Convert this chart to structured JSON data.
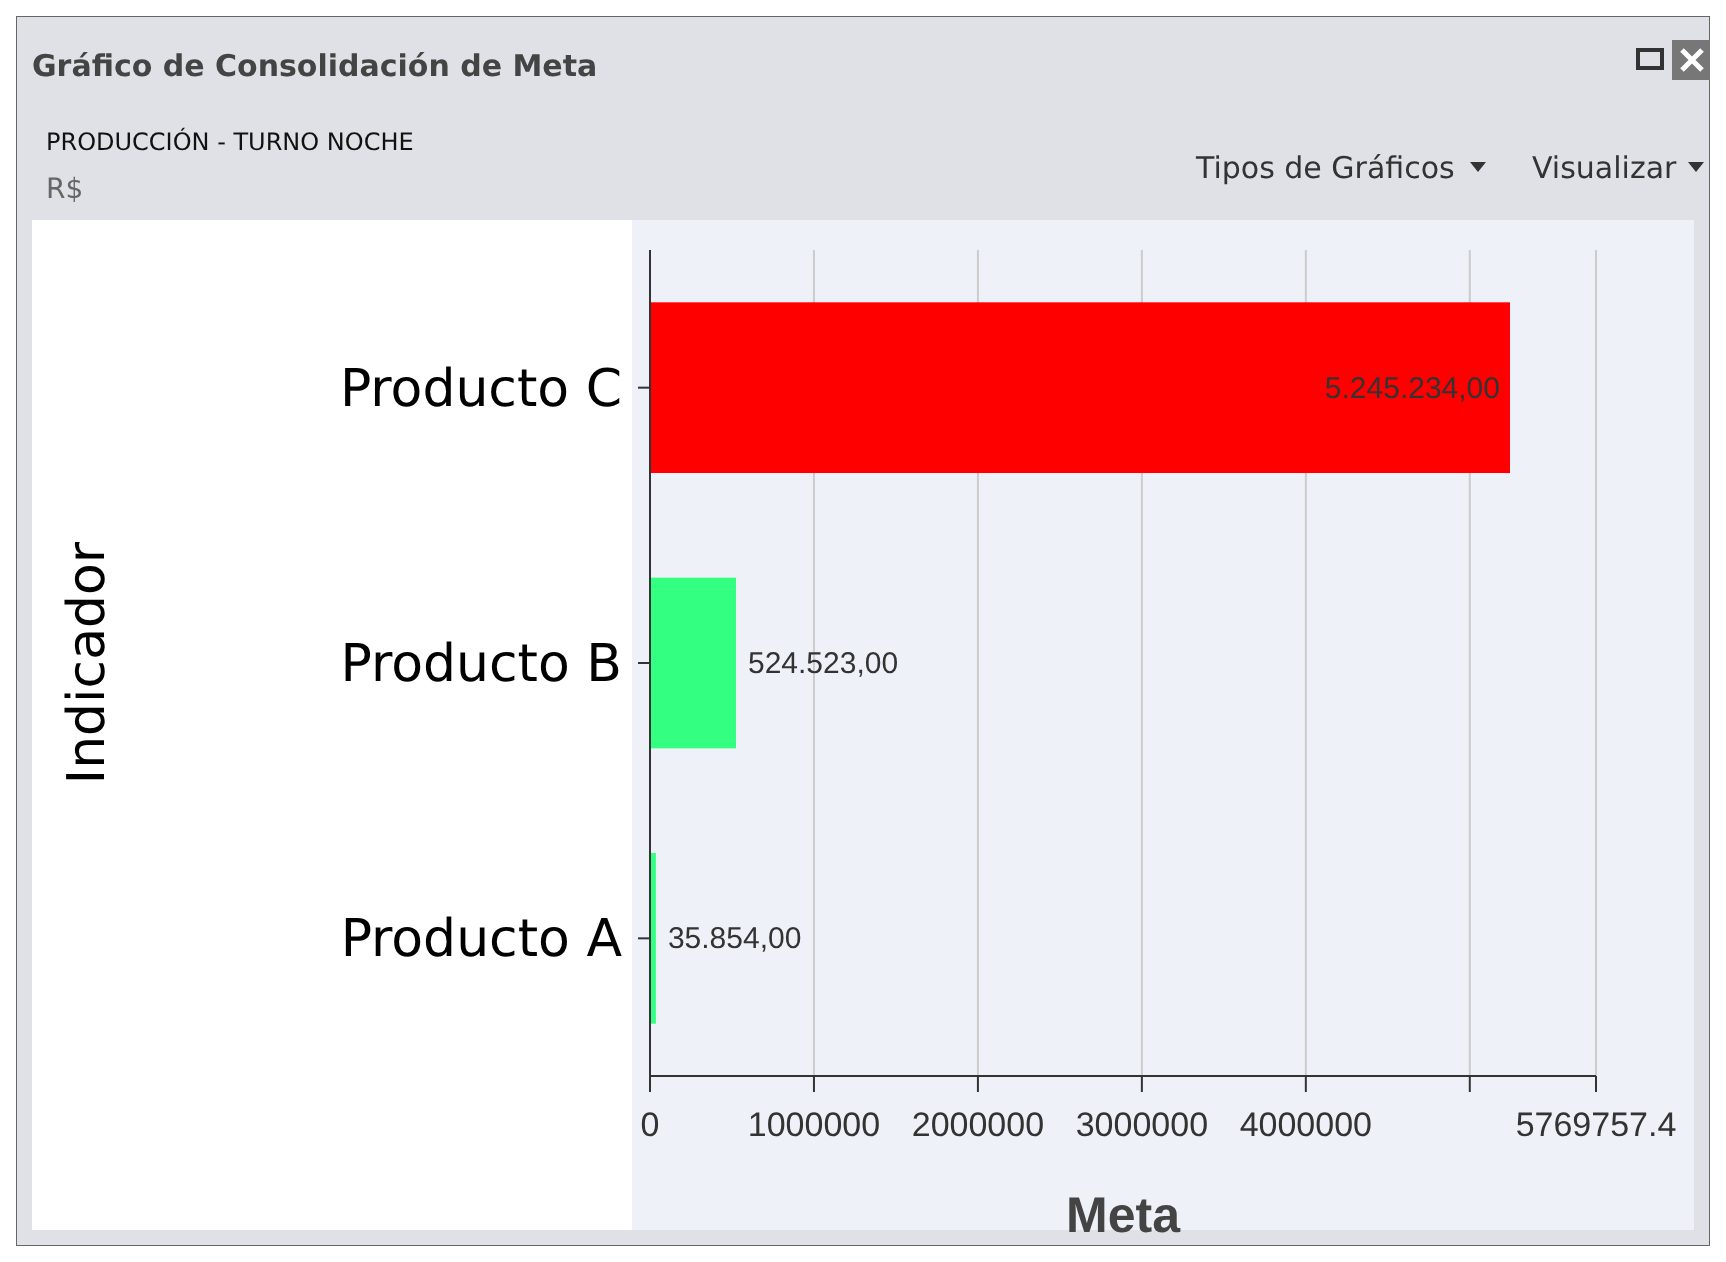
{
  "chart_data": {
    "type": "bar",
    "orientation": "horizontal",
    "title": "Gráfico de Consolidación de Meta",
    "subtitle": "PRODUCCIÓN - TURNO NOCHE",
    "annotations": [
      "R$",
      "Tipos de Gráficos",
      "Visualizar"
    ],
    "categories": [
      "Producto C",
      "Producto B",
      "Producto A"
    ],
    "values": [
      5245234,
      524523,
      35854
    ],
    "colors": [
      "#ff0000",
      "#33ff80",
      "#33ff80"
    ],
    "value_labels": [
      "5.245.234,00",
      "524.523,00",
      "35.854,00"
    ],
    "xlabel": "Meta",
    "ylabel": "Indicador",
    "xlim": [
      0,
      5769757.4
    ],
    "xticks": [
      0,
      1000000,
      2000000,
      3000000,
      4000000,
      {
        "value": 5000000,
        "label": null
      },
      5769757.4
    ],
    "grid": "x"
  }
}
